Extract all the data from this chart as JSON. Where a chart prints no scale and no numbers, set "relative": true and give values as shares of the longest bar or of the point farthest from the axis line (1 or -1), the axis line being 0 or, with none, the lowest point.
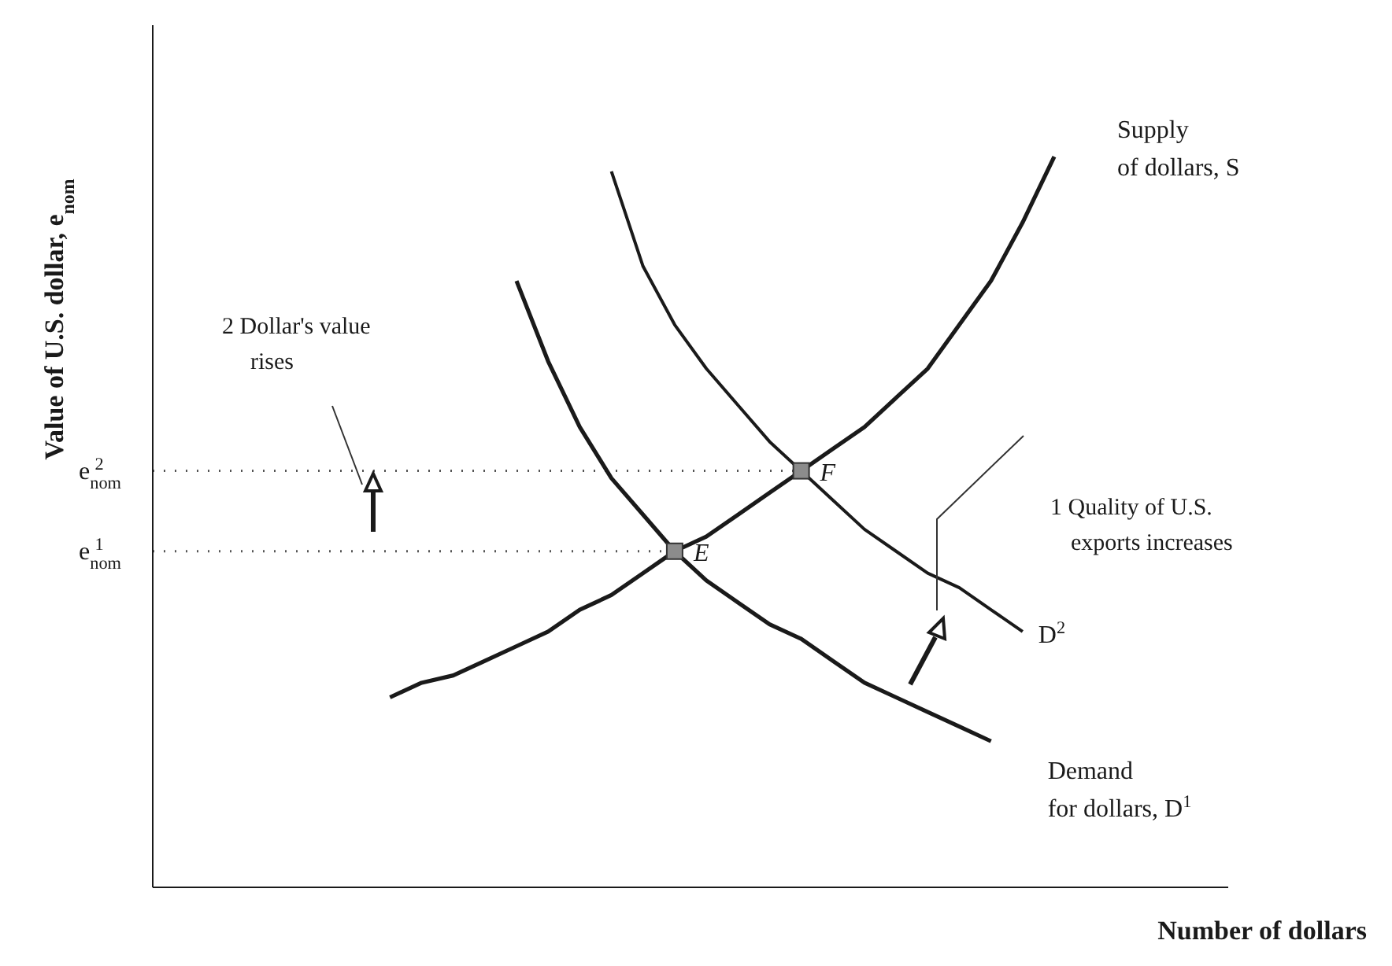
{
  "chart_data": {
    "type": "line",
    "relative": true,
    "xlabel": "Number of dollars",
    "ylabel": "Value of U.S. dollar, e$_{nom}$",
    "legend": false,
    "marker": "none",
    "categories": [
      null,
      null,
      null,
      null,
      null,
      null,
      null,
      null,
      null,
      null,
      null,
      null,
      null,
      null,
      null,
      null,
      null,
      null,
      null,
      null,
      null,
      null,
      null,
      null,
      null,
      null,
      null,
      null,
      null,
      null,
      null,
      null,
      null,
      null
    ],
    "series": [
      {
        "name": "Supply of dollars, S",
        "color": "#1a1a1a",
        "values": [
          null,
          null,
          null,
          null,
          null,
          null,
          null,
          0.26,
          0.28,
          0.29,
          0.31,
          0.33,
          0.35,
          0.38,
          0.4,
          0.43,
          0.46,
          0.48,
          0.51,
          0.54,
          0.57,
          0.6,
          0.63,
          0.67,
          0.71,
          0.77,
          0.83,
          0.91,
          1.0,
          null,
          null,
          null,
          null,
          null
        ]
      },
      {
        "name": "Demand for dollars, D$^{1}$",
        "color": "#1a1a1a",
        "values": [
          null,
          null,
          null,
          null,
          null,
          null,
          null,
          null,
          null,
          null,
          null,
          0.83,
          0.72,
          0.63,
          0.56,
          0.51,
          0.46,
          0.42,
          0.39,
          0.36,
          0.34,
          0.31,
          0.28,
          0.26,
          0.24,
          0.22,
          0.2,
          null,
          null,
          null,
          null,
          null,
          null,
          null
        ]
      },
      {
        "name": "D$^{2}$",
        "color": "#1a1a1a",
        "values": [
          null,
          null,
          null,
          null,
          null,
          null,
          null,
          null,
          null,
          null,
          null,
          null,
          null,
          null,
          0.98,
          0.85,
          0.77,
          0.71,
          0.66,
          0.61,
          0.57,
          0.53,
          0.49,
          0.46,
          0.43,
          0.41,
          0.38,
          0.35,
          null,
          null,
          null,
          null,
          null,
          null
        ]
      }
    ],
    "ref_lines": [
      {
        "axis": "y",
        "value": 0.46,
        "label": "e$_{nom}$$^{1}$",
        "line_style": "dotted",
        "color": "#555555"
      },
      {
        "axis": "y",
        "value": 0.57,
        "label": "e$_{nom}$$^{2}$",
        "line_style": "dotted",
        "color": "#555555"
      }
    ],
    "annotations": [
      "E",
      "F",
      "1 Quality of U.S. exports increases",
      "2 Dollar's value rises"
    ]
  }
}
